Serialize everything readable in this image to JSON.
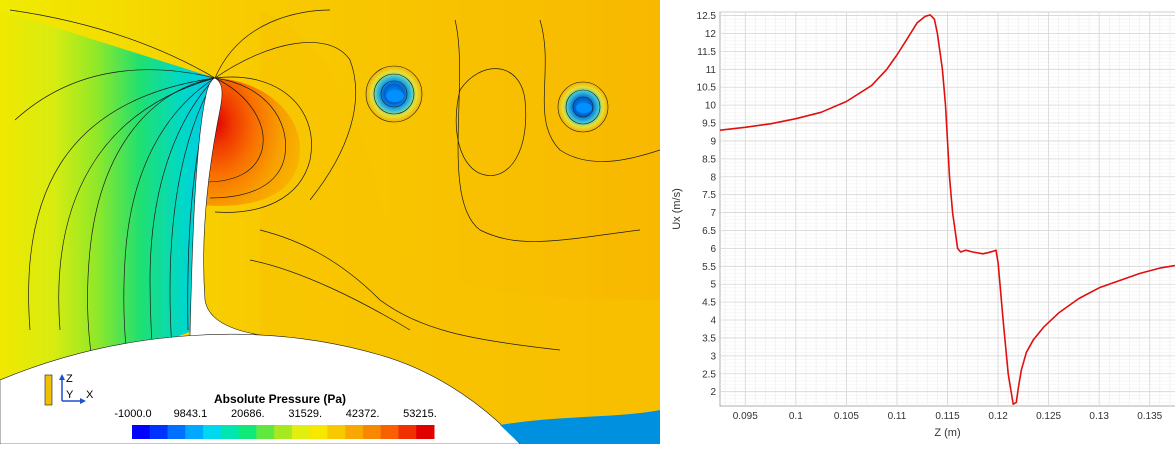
{
  "contour": {
    "legend_title": "Absolute Pressure (Pa)",
    "legend_ticks": [
      "-1000.0",
      "9843.1",
      "20686.",
      "31529.",
      "42372.",
      "53215."
    ],
    "legend_colors": [
      "#0000ff",
      "#0033ff",
      "#0070ff",
      "#00a8ff",
      "#00d8f0",
      "#00e8b0",
      "#10e878",
      "#60e840",
      "#a8e820",
      "#e0ee10",
      "#f8e800",
      "#f8c800",
      "#f8a800",
      "#f88800",
      "#f86000",
      "#f03000",
      "#e00000"
    ],
    "axis_triad": {
      "z": "Z",
      "y": "Y",
      "x": "X"
    }
  },
  "chart_data": {
    "type": "line",
    "xlabel": "Z (m)",
    "ylabel": "Ux (m/s)",
    "xlim": [
      0.0925,
      0.1375
    ],
    "ylim": [
      1.6,
      12.6
    ],
    "x_ticks": [
      "0.095",
      "0.1",
      "0.105",
      "0.11",
      "0.115",
      "0.12",
      "0.125",
      "0.13",
      "0.135"
    ],
    "y_ticks": [
      "2",
      "2.5",
      "3",
      "3.5",
      "4",
      "4.5",
      "5",
      "5.5",
      "6",
      "6.5",
      "7",
      "7.5",
      "8",
      "8.5",
      "9",
      "9.5",
      "10",
      "10.5",
      "11",
      "11.5",
      "12",
      "12.5"
    ],
    "grid": true,
    "line_color": "#e01010",
    "series": [
      {
        "x": [
          0.0925,
          0.095,
          0.0975,
          0.1,
          0.1025,
          0.105,
          0.1075,
          0.109,
          0.11,
          0.111,
          0.112,
          0.1128,
          0.1133,
          0.1137,
          0.114,
          0.1145,
          0.1148,
          0.115,
          0.1152,
          0.1155,
          0.1158,
          0.116,
          0.1163,
          0.1168,
          0.1175,
          0.1185,
          0.119,
          0.1195,
          0.1198,
          0.12,
          0.1205,
          0.121,
          0.1215,
          0.1218,
          0.122,
          0.1223,
          0.1228,
          0.1235,
          0.1245,
          0.126,
          0.128,
          0.13,
          0.132,
          0.134,
          0.136,
          0.1375
        ],
        "y": [
          9.3,
          9.38,
          9.48,
          9.62,
          9.8,
          10.1,
          10.55,
          11.0,
          11.4,
          11.85,
          12.3,
          12.48,
          12.52,
          12.4,
          12.0,
          11.0,
          10.0,
          9.0,
          8.0,
          7.0,
          6.4,
          6.0,
          5.9,
          5.95,
          5.9,
          5.85,
          5.88,
          5.92,
          5.95,
          5.6,
          4.0,
          2.5,
          1.65,
          1.7,
          2.1,
          2.6,
          3.1,
          3.45,
          3.8,
          4.2,
          4.6,
          4.9,
          5.1,
          5.3,
          5.45,
          5.52
        ]
      }
    ]
  }
}
